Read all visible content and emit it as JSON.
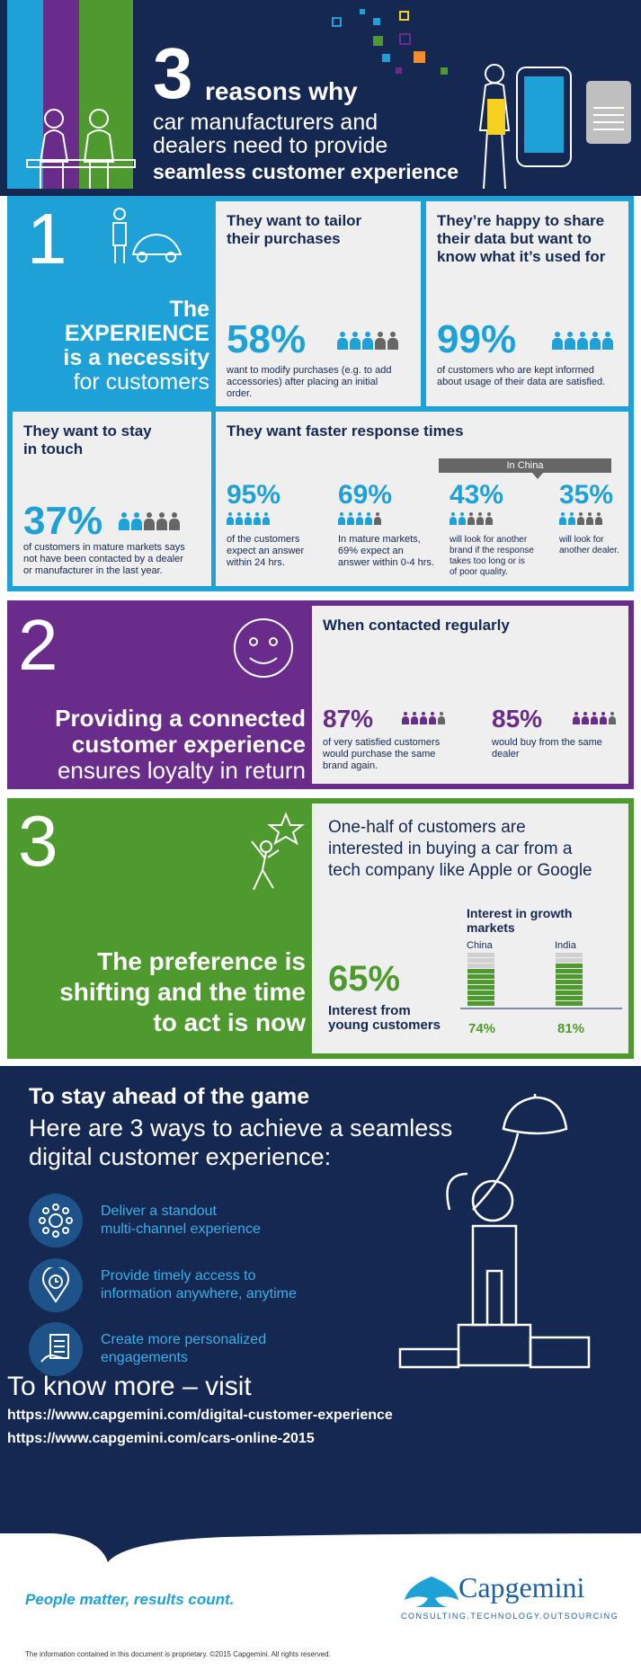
{
  "header": {
    "number": "3",
    "line1": "reasons why",
    "line2": "car manufacturers and",
    "line3": "dealers need to provide",
    "line4": "seamless customer experience",
    "stripe_colors": [
      "#1da1d6",
      "#6a2c8a",
      "#4f9a2e"
    ]
  },
  "section1": {
    "number": "1",
    "heading_l1": "The",
    "heading_l2": "EXPERIENCE",
    "heading_l3": "is a necessity",
    "heading_l4": "for customers",
    "tailor": {
      "title_l1": "They want to tailor",
      "title_l2": "their purchases",
      "percent": "58%",
      "desc_l1": "want to modify purchases (e.g. to add",
      "desc_l2": "accessories) after placing an initial",
      "desc_l3": "order."
    },
    "share": {
      "title_l1": "They’re happy to share",
      "title_l2": "their data but want to",
      "title_l3": "know what it’s used for",
      "percent": "99%",
      "desc_l1": "of customers who are kept informed",
      "desc_l2": "about usage of their data are satisfied."
    },
    "touch": {
      "title_l1": "They want to stay",
      "title_l2": "in touch",
      "percent": "37%",
      "desc_l1": "of customers in mature markets says",
      "desc_l2": "not have been contacted by a dealer",
      "desc_l3": "or manufacturer in the last year."
    },
    "faster": {
      "title": "They want faster response times",
      "china_label": "In China",
      "items": [
        {
          "percent": "95%",
          "d1": "of the customers",
          "d2": "expect an answer",
          "d3": "within 24 hrs.",
          "d4": ""
        },
        {
          "percent": "69%",
          "d1": "In mature markets,",
          "d2": "69% expect an",
          "d3": "answer within 0-4 hrs.",
          "d4": ""
        },
        {
          "percent": "43%",
          "d1": "will look for another",
          "d2": "brand if the response",
          "d3": "takes too long or is",
          "d4": "of poor quality."
        },
        {
          "percent": "35%",
          "d1": "will look for",
          "d2": "another dealer.",
          "d3": "",
          "d4": ""
        }
      ]
    }
  },
  "section2": {
    "number": "2",
    "heading_l1": "Providing a connected",
    "heading_l2": "customer experience",
    "heading_l3": "ensures loyalty in return",
    "panel_title": "When contacted regularly",
    "stat1": {
      "percent": "87%",
      "d1": "of very satisfied customers",
      "d2": "would purchase the same",
      "d3": "brand again."
    },
    "stat2": {
      "percent": "85%",
      "d1": "would buy from the same",
      "d2": "dealer"
    }
  },
  "section3": {
    "number": "3",
    "heading_l1": "The preference is",
    "heading_l2": "shifting and the time",
    "heading_l3": "to act is now",
    "intro_l1": "One-half of customers are",
    "intro_l2": "interested in buying a car from a",
    "intro_l3": "tech company like Apple or Google",
    "percent": "65%",
    "young_l1": "Interest from",
    "young_l2": "young customers",
    "growth_title_l1": "Interest in growth",
    "growth_title_l2": "markets",
    "china": {
      "label": "China",
      "value": "74%",
      "fill": 0.74
    },
    "india": {
      "label": "India",
      "value": "81%",
      "fill": 0.81
    }
  },
  "ahead": {
    "title": "To stay ahead of the game",
    "sub_l1": "Here are 3 ways to achieve a seamless",
    "sub_l2": "digital customer experience:",
    "ways": [
      {
        "l1": "Deliver a standout",
        "l2": "multi-channel experience",
        "icon": "network-icon"
      },
      {
        "l1": "Provide timely access to",
        "l2": "information anywhere, anytime",
        "icon": "clock-pin-icon"
      },
      {
        "l1": "Create more personalized",
        "l2": "engagements",
        "icon": "document-hand-icon"
      }
    ],
    "know_more": "To know more – visit",
    "link1": "https://www.capgemini.com/digital-customer-experience",
    "link2": "https://www.capgemini.com/cars-online-2015"
  },
  "footer": {
    "tagline": "People matter, results count.",
    "brand": "Capgemini",
    "brand_sub": "CONSULTING.TECHNOLOGY.OUTSOURCING",
    "disclaimer": "The information contained in this document is proprietary. ©2015 Capgemini. All rights reserved."
  }
}
